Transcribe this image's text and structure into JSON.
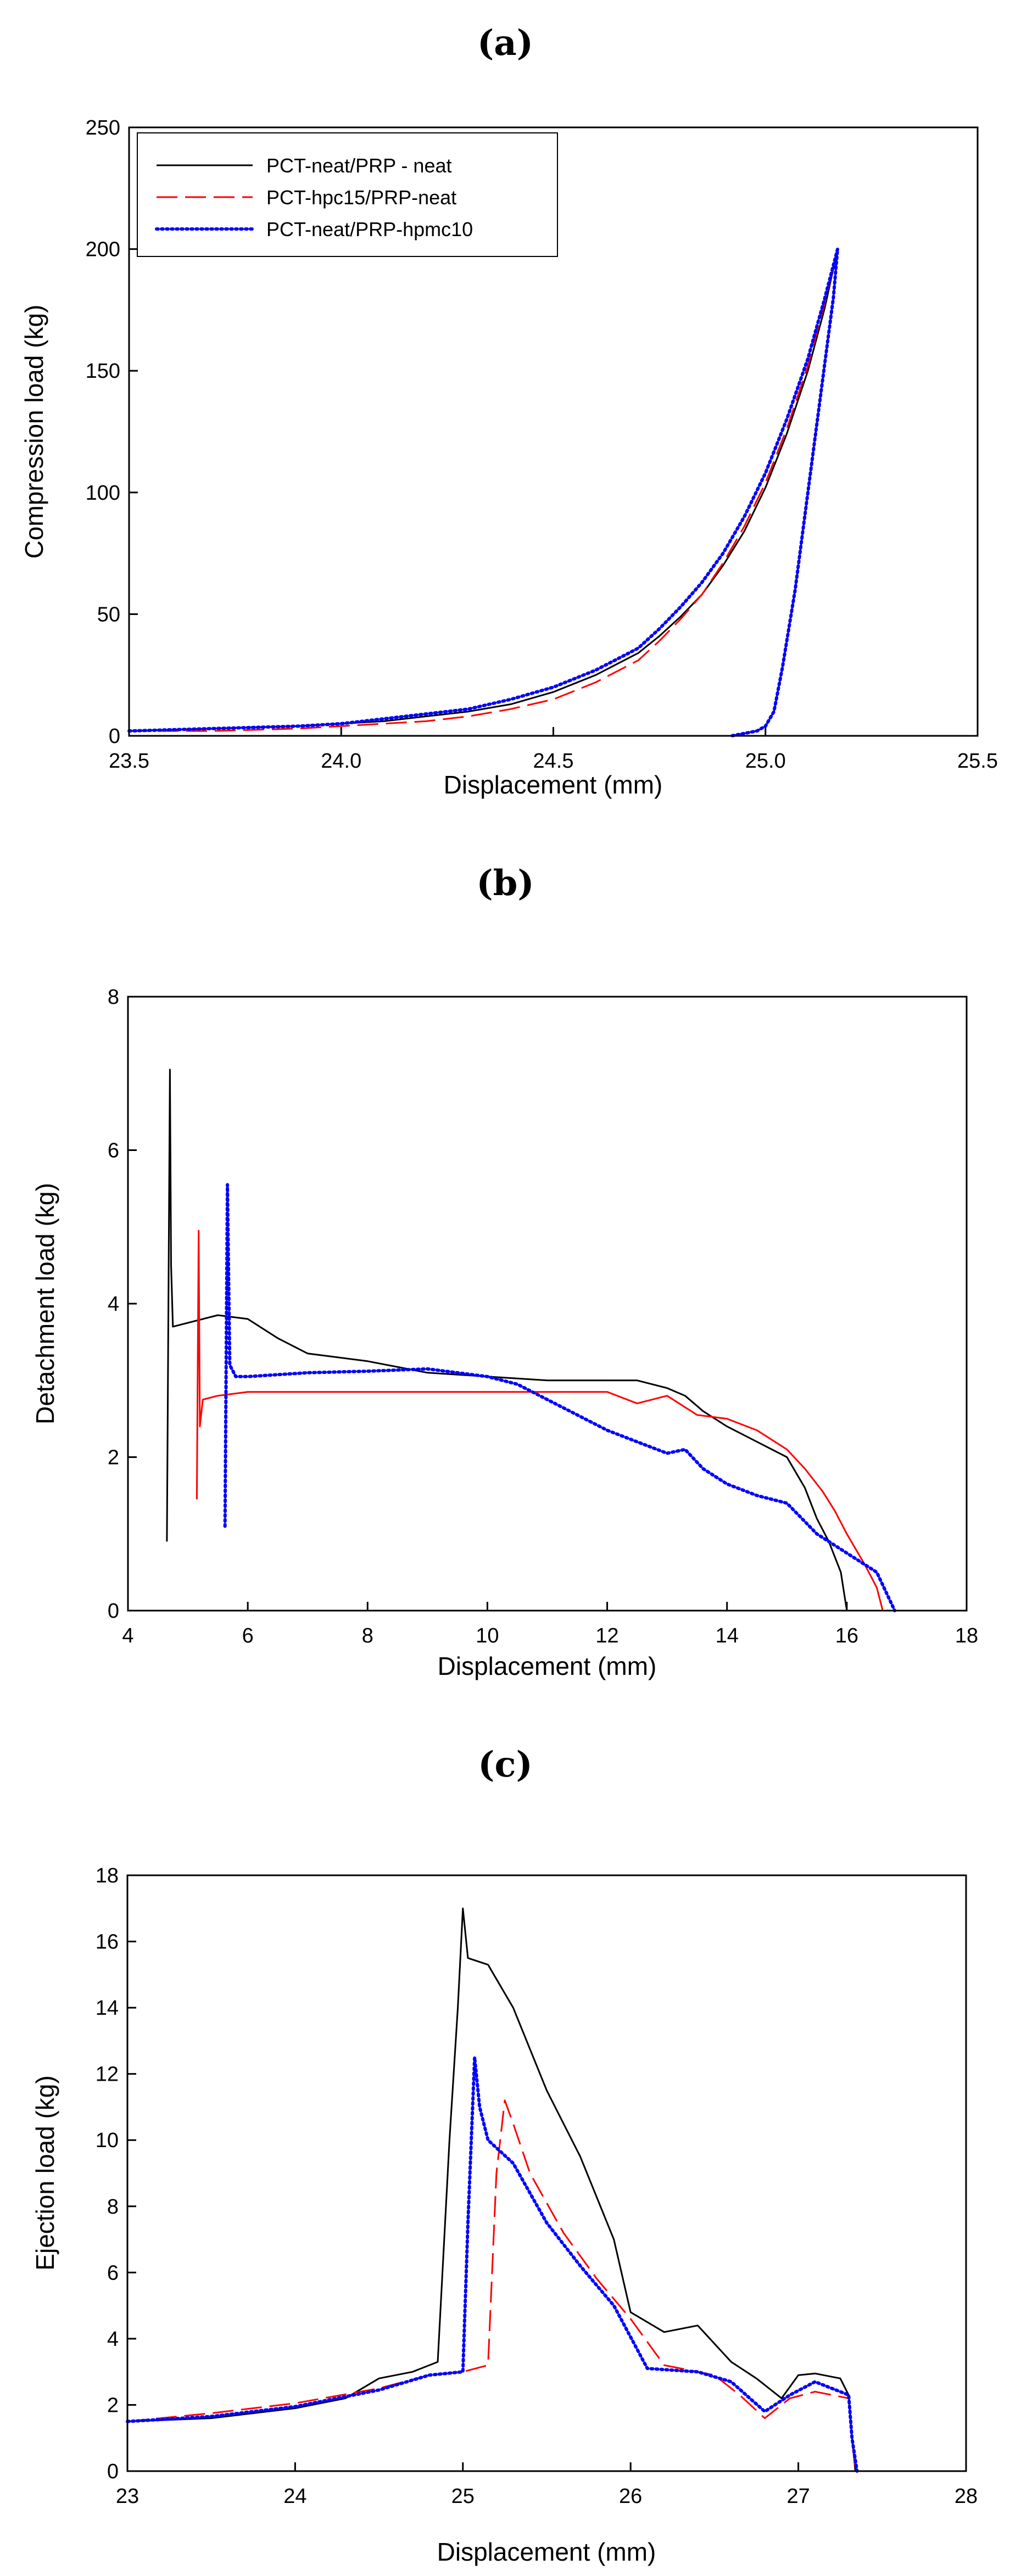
{
  "chart_data": [
    {
      "panel": "(a)",
      "type": "line",
      "title": "",
      "xlabel": "Displacement (mm)",
      "ylabel": "Compression load (kg)",
      "xlim": [
        23.5,
        25.5
      ],
      "ylim": [
        0,
        250
      ],
      "xticks": [
        23.5,
        24.0,
        24.5,
        25.0,
        25.5
      ],
      "xtick_labels": [
        "23.5",
        "24.0",
        "24.5",
        "25.0",
        "25.5"
      ],
      "yticks": [
        0,
        50,
        100,
        150,
        200,
        250
      ],
      "ytick_labels": [
        "0",
        "50",
        "100",
        "150",
        "200",
        "250"
      ],
      "legend_position": "top-left",
      "series": [
        {
          "name": "PCT-neat/PRP - neat",
          "color": "#000000",
          "style": "solid",
          "x": [
            23.5,
            23.7,
            23.9,
            24.0,
            24.1,
            24.2,
            24.3,
            24.4,
            24.5,
            24.6,
            24.7,
            24.75,
            24.8,
            24.85,
            24.9,
            24.95,
            25.0,
            25.05,
            25.1,
            25.14,
            25.17,
            25.16,
            25.13,
            25.1,
            25.07,
            25.04,
            25.02,
            25.0,
            24.98,
            24.95,
            24.92
          ],
          "y": [
            2,
            3,
            4,
            5,
            6,
            8,
            10,
            13,
            18,
            25,
            34,
            41,
            49,
            58,
            70,
            84,
            102,
            124,
            150,
            176,
            200,
            180,
            140,
            100,
            60,
            28,
            10,
            4,
            2,
            1,
            0
          ]
        },
        {
          "name": "PCT-hpc15/PRP-neat",
          "color": "#ff0000",
          "style": "dashed",
          "x": [
            23.5,
            23.7,
            23.9,
            24.0,
            24.1,
            24.2,
            24.3,
            24.4,
            24.5,
            24.6,
            24.7,
            24.75,
            24.8,
            24.85,
            24.9,
            24.95,
            25.0,
            25.05,
            25.1,
            25.14,
            25.17,
            25.16,
            25.13,
            25.1,
            25.07,
            25.04,
            25.02,
            25.0,
            24.98,
            24.95,
            24.92
          ],
          "y": [
            2,
            2,
            3,
            4,
            5,
            6,
            8,
            11,
            15,
            22,
            31,
            39,
            48,
            58,
            71,
            86,
            104,
            126,
            152,
            178,
            200,
            180,
            140,
            100,
            60,
            28,
            10,
            4,
            2,
            1,
            0
          ]
        },
        {
          "name": "PCT-neat/PRP-hpmc10",
          "color": "#0000ff",
          "style": "dotted",
          "x": [
            23.5,
            23.7,
            23.9,
            24.0,
            24.1,
            24.2,
            24.3,
            24.4,
            24.5,
            24.6,
            24.7,
            24.75,
            24.8,
            24.85,
            24.9,
            24.95,
            25.0,
            25.05,
            25.1,
            25.14,
            25.17,
            25.16,
            25.13,
            25.1,
            25.07,
            25.04,
            25.02,
            25.0,
            24.98,
            24.95,
            24.92
          ],
          "y": [
            2,
            3,
            4,
            5,
            7,
            9,
            11,
            15,
            20,
            27,
            36,
            44,
            53,
            63,
            75,
            90,
            108,
            130,
            155,
            180,
            200,
            180,
            140,
            100,
            60,
            28,
            10,
            4,
            2,
            1,
            0
          ]
        }
      ]
    },
    {
      "panel": "(b)",
      "type": "line",
      "title": "",
      "xlabel": "Displacement (mm)",
      "ylabel": "Detachment load (kg)",
      "xlim": [
        4,
        18
      ],
      "ylim": [
        0,
        8
      ],
      "xticks": [
        4,
        6,
        8,
        10,
        12,
        14,
        16,
        18
      ],
      "xtick_labels": [
        "4",
        "6",
        "8",
        "10",
        "12",
        "14",
        "16",
        "18"
      ],
      "yticks": [
        0,
        2,
        4,
        6,
        8
      ],
      "ytick_labels": [
        "0",
        "2",
        "4",
        "6",
        "8"
      ],
      "series": [
        {
          "name": "PCT-neat/PRP - neat",
          "color": "#000000",
          "style": "solid",
          "x": [
            4.65,
            4.7,
            4.72,
            4.75,
            5.0,
            5.5,
            6.0,
            6.5,
            7.0,
            7.5,
            8.0,
            9.0,
            10.0,
            11.0,
            12.0,
            12.5,
            13.0,
            13.3,
            13.6,
            14.0,
            14.5,
            15.0,
            15.3,
            15.5,
            15.7,
            15.9,
            16.0
          ],
          "y": [
            0.9,
            7.05,
            4.5,
            3.7,
            3.75,
            3.85,
            3.8,
            3.55,
            3.35,
            3.3,
            3.25,
            3.1,
            3.05,
            3.0,
            3.0,
            3.0,
            2.9,
            2.8,
            2.6,
            2.4,
            2.2,
            2.0,
            1.6,
            1.2,
            0.9,
            0.5,
            0.0
          ]
        },
        {
          "name": "PCT-hpc15/PRP-neat",
          "color": "#ff0000",
          "style": "solid",
          "x": [
            5.15,
            5.18,
            5.2,
            5.25,
            5.5,
            6.0,
            7.0,
            8.0,
            9.0,
            10.0,
            11.0,
            12.0,
            12.5,
            13.0,
            13.5,
            14.0,
            14.5,
            15.0,
            15.3,
            15.6,
            15.8,
            16.0,
            16.3,
            16.5,
            16.6
          ],
          "y": [
            1.45,
            4.95,
            2.4,
            2.75,
            2.8,
            2.85,
            2.85,
            2.85,
            2.85,
            2.85,
            2.85,
            2.85,
            2.7,
            2.8,
            2.55,
            2.5,
            2.35,
            2.1,
            1.85,
            1.55,
            1.3,
            1.0,
            0.6,
            0.3,
            0.0
          ]
        },
        {
          "name": "PCT-neat/PRP-hpmc10",
          "color": "#0000ff",
          "style": "dotted",
          "x": [
            5.62,
            5.66,
            5.7,
            5.8,
            6.0,
            7.0,
            8.0,
            9.0,
            10.0,
            10.5,
            11.0,
            11.5,
            12.0,
            12.5,
            13.0,
            13.3,
            13.6,
            14.0,
            14.5,
            15.0,
            15.5,
            16.0,
            16.5,
            16.8
          ],
          "y": [
            1.1,
            5.55,
            3.2,
            3.05,
            3.05,
            3.1,
            3.12,
            3.15,
            3.05,
            2.95,
            2.75,
            2.55,
            2.35,
            2.2,
            2.05,
            2.1,
            1.85,
            1.65,
            1.5,
            1.4,
            1.0,
            0.75,
            0.5,
            0.0
          ]
        }
      ]
    },
    {
      "panel": "(c)",
      "type": "line",
      "title": "",
      "xlabel": "Displacement (mm)",
      "ylabel": "Ejection load (kg)",
      "xlim": [
        23,
        28
      ],
      "ylim": [
        0,
        18
      ],
      "xticks": [
        23,
        24,
        25,
        26,
        27,
        28
      ],
      "xtick_labels": [
        "23",
        "24",
        "25",
        "26",
        "27",
        "28"
      ],
      "yticks": [
        0,
        2,
        4,
        6,
        8,
        10,
        12,
        14,
        16,
        18
      ],
      "ytick_labels": [
        "0",
        "2",
        "4",
        "6",
        "8",
        "10",
        "12",
        "14",
        "16",
        "18"
      ],
      "series": [
        {
          "name": "PCT-neat/PRP - neat",
          "color": "#000000",
          "style": "solid",
          "x": [
            23.0,
            23.5,
            24.0,
            24.3,
            24.5,
            24.7,
            24.85,
            24.92,
            24.97,
            25.0,
            25.03,
            25.15,
            25.3,
            25.5,
            25.7,
            25.9,
            26.0,
            26.2,
            26.4,
            26.6,
            26.75,
            26.9,
            27.0,
            27.1,
            27.25,
            27.3,
            27.32,
            27.34
          ],
          "y": [
            1.5,
            1.6,
            1.9,
            2.2,
            2.8,
            3.0,
            3.3,
            10.0,
            14.0,
            17.0,
            15.5,
            15.3,
            14.0,
            11.5,
            9.5,
            7.0,
            4.8,
            4.2,
            4.4,
            3.3,
            2.8,
            2.2,
            2.9,
            2.95,
            2.8,
            2.3,
            1.0,
            0.0
          ]
        },
        {
          "name": "PCT-hpc15/PRP-neat",
          "color": "#ff0000",
          "style": "dashed",
          "x": [
            23.0,
            23.5,
            24.0,
            24.5,
            24.8,
            25.0,
            25.15,
            25.2,
            25.25,
            25.3,
            25.4,
            25.6,
            25.8,
            26.0,
            26.2,
            26.5,
            26.65,
            26.8,
            26.95,
            27.1,
            27.3,
            27.32,
            27.34
          ],
          "y": [
            1.5,
            1.75,
            2.05,
            2.5,
            2.9,
            3.0,
            3.2,
            9.0,
            11.2,
            10.5,
            9.0,
            7.2,
            5.8,
            4.6,
            3.2,
            2.9,
            2.3,
            1.6,
            2.2,
            2.4,
            2.2,
            1.0,
            0.0
          ]
        },
        {
          "name": "PCT-neat/PRP-hpmc10",
          "color": "#0000ff",
          "style": "dotted",
          "x": [
            23.0,
            23.5,
            24.0,
            24.5,
            24.8,
            25.0,
            25.03,
            25.07,
            25.1,
            25.15,
            25.3,
            25.5,
            25.7,
            25.9,
            26.1,
            26.4,
            26.6,
            26.8,
            26.95,
            27.1,
            27.3,
            27.32,
            27.35
          ],
          "y": [
            1.5,
            1.65,
            1.95,
            2.45,
            2.9,
            3.0,
            7.5,
            12.5,
            11.0,
            10.0,
            9.3,
            7.5,
            6.2,
            5.0,
            3.1,
            3.0,
            2.7,
            1.8,
            2.3,
            2.7,
            2.3,
            1.0,
            0.0
          ]
        }
      ]
    }
  ]
}
